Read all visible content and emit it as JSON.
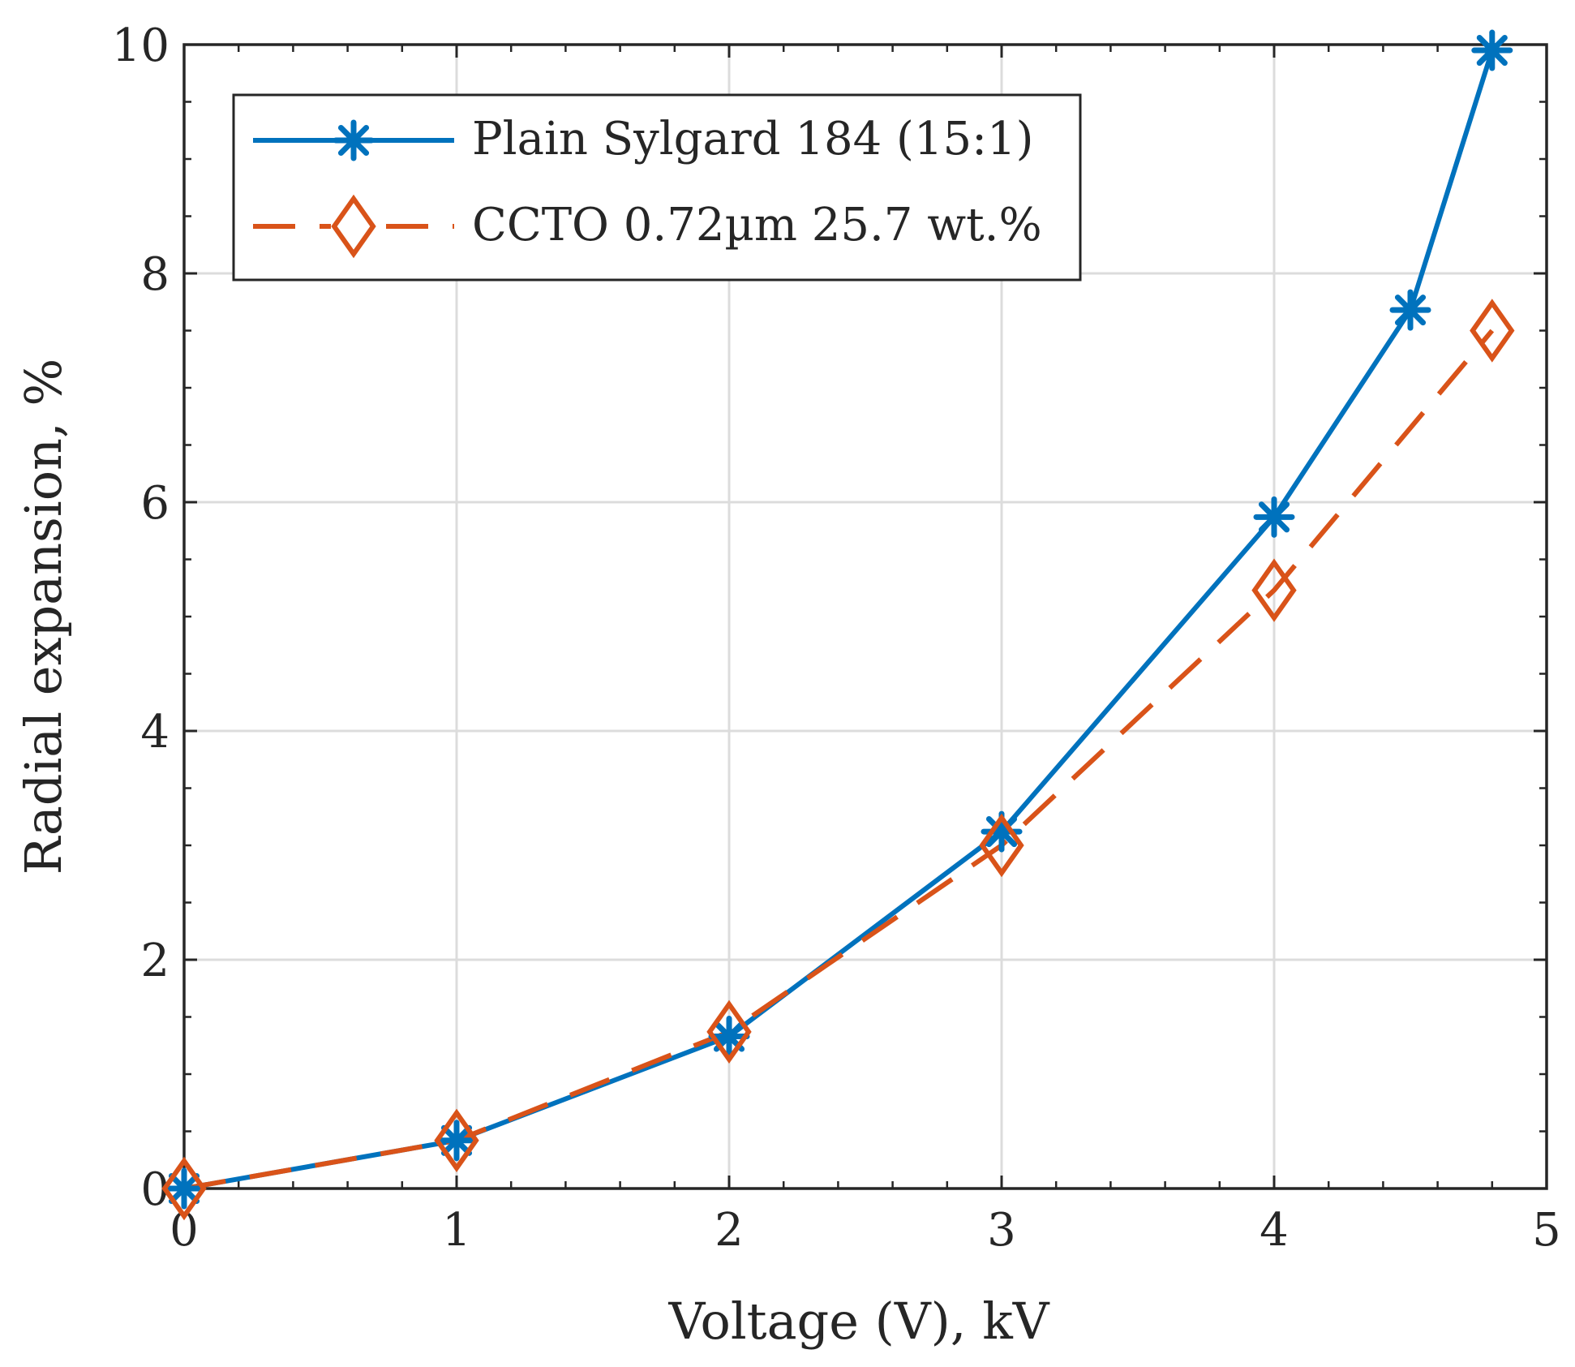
{
  "chart_data": {
    "type": "line",
    "title": "",
    "xlabel": "Voltage (V), kV",
    "ylabel": "Radial expansion, %",
    "xlim": [
      0,
      5
    ],
    "ylim": [
      0,
      10
    ],
    "xticks": [
      0,
      1,
      2,
      3,
      4,
      5
    ],
    "yticks": [
      0,
      2,
      4,
      6,
      8,
      10
    ],
    "xtick_labels": [
      "0",
      "1",
      "2",
      "3",
      "4",
      "5"
    ],
    "ytick_labels": [
      "0",
      "2",
      "4",
      "6",
      "8",
      "10"
    ],
    "grid": true,
    "legend_position": "top-left",
    "series": [
      {
        "name": "Plain Sylgard 184 (15:1)",
        "color": "#0072BD",
        "line_style": "solid",
        "marker": "asterisk",
        "x": [
          0,
          1,
          2,
          3,
          4,
          4.5,
          4.8
        ],
        "y": [
          0,
          0.42,
          1.33,
          3.12,
          5.87,
          7.68,
          9.95
        ]
      },
      {
        "name": "CCTO 0.72µm 25.7 wt.%",
        "color": "#D95319",
        "line_style": "dashed",
        "marker": "diamond",
        "x": [
          0,
          1,
          2,
          3,
          4,
          4.8
        ],
        "y": [
          0,
          0.42,
          1.37,
          3.0,
          5.23,
          7.5
        ]
      }
    ]
  }
}
